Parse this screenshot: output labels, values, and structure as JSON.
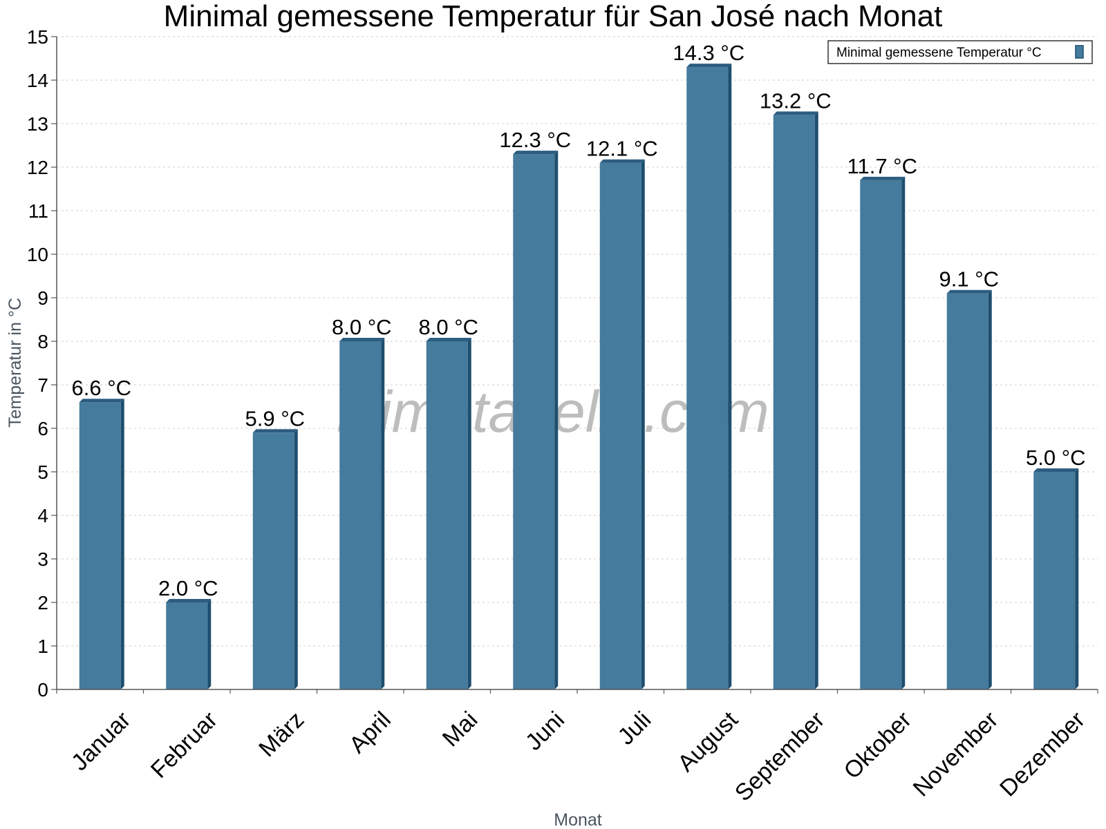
{
  "chart_data": {
    "type": "bar",
    "title": "Minimal gemessene Temperatur für San José nach Monat",
    "xlabel": "Monat",
    "ylabel": "Temperatur in °C",
    "ylim": [
      0,
      15
    ],
    "yticks": [
      0,
      1,
      2,
      3,
      4,
      5,
      6,
      7,
      8,
      9,
      10,
      11,
      12,
      13,
      14,
      15
    ],
    "grid": true,
    "legend_position": "top-right",
    "categories": [
      "Januar",
      "Februar",
      "März",
      "April",
      "Mai",
      "Juni",
      "Juli",
      "August",
      "September",
      "Oktober",
      "November",
      "Dezember"
    ],
    "series": [
      {
        "name": "Minimal gemessene Temperatur °C",
        "values": [
          6.6,
          2.0,
          5.9,
          8.0,
          8.0,
          12.3,
          12.1,
          14.3,
          13.2,
          11.7,
          9.1,
          5.0
        ],
        "labels": [
          "6.6 °C",
          "2.0 °C",
          "5.9 °C",
          "8.0 °C",
          "8.0 °C",
          "12.3 °C",
          "12.1 °C",
          "14.3 °C",
          "13.2 °C",
          "11.7 °C",
          "9.1 °C",
          "5.0 °C"
        ]
      }
    ],
    "colors": {
      "bar": "#457b9d",
      "bar_side": "#1f4e6e",
      "bar_top": "#2c5d80",
      "grid": "#cccccc",
      "axis": "#555555"
    }
  },
  "watermark": "klimatabelle.com"
}
